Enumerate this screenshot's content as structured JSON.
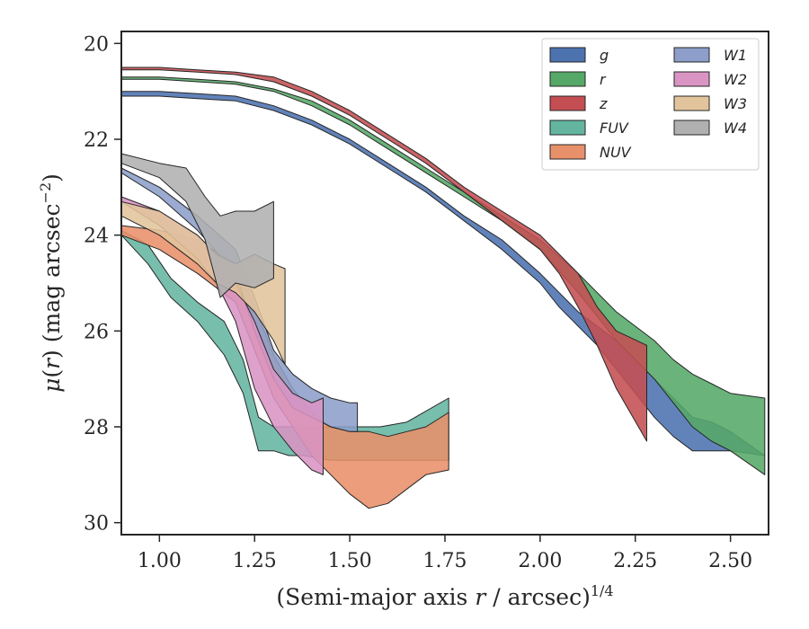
{
  "chart_data": {
    "type": "area",
    "xlabel": "(Semi-major axis r / arcsec)^{1/4}",
    "ylabel": "μ(r) (mag arcsec^{-2})",
    "xlim": [
      0.9,
      2.6
    ],
    "ylim": [
      30.25,
      19.75
    ],
    "y_inverted": true,
    "xticks": [
      "1.00",
      "1.25",
      "1.50",
      "1.75",
      "2.00",
      "2.25",
      "2.50"
    ],
    "yticks": [
      "20",
      "22",
      "24",
      "26",
      "28",
      "30"
    ],
    "grid": false,
    "legend_position": "top-right",
    "legend_columns": 2,
    "series": [
      {
        "name": "g",
        "color": "#4c72b0",
        "x": [
          0.9,
          1.0,
          1.1,
          1.2,
          1.3,
          1.4,
          1.5,
          1.6,
          1.7,
          1.8,
          1.9,
          2.0,
          2.05,
          2.1,
          2.15,
          2.2,
          2.25,
          2.3,
          2.35,
          2.4,
          2.45,
          2.5,
          2.59
        ],
        "lower": [
          21.0,
          21.0,
          21.05,
          21.1,
          21.3,
          21.6,
          22.0,
          22.5,
          23.0,
          23.6,
          24.1,
          24.8,
          25.2,
          25.6,
          25.9,
          26.2,
          26.6,
          27.0,
          27.4,
          27.8,
          27.9,
          28.1,
          28.6
        ],
        "upper": [
          21.1,
          21.1,
          21.15,
          21.2,
          21.4,
          21.7,
          22.1,
          22.6,
          23.1,
          23.7,
          24.3,
          25.0,
          25.5,
          25.9,
          26.3,
          26.8,
          27.3,
          27.8,
          28.2,
          28.5,
          28.5,
          28.5,
          28.6
        ]
      },
      {
        "name": "r",
        "color": "#55a868",
        "x": [
          0.9,
          1.0,
          1.1,
          1.2,
          1.3,
          1.4,
          1.5,
          1.6,
          1.7,
          1.8,
          1.9,
          2.0,
          2.1,
          2.2,
          2.3,
          2.35,
          2.4,
          2.45,
          2.5,
          2.59
        ],
        "lower": [
          20.7,
          20.7,
          20.75,
          20.8,
          20.95,
          21.2,
          21.6,
          22.1,
          22.6,
          23.1,
          23.6,
          24.1,
          24.8,
          25.6,
          26.2,
          26.6,
          26.9,
          27.1,
          27.3,
          27.4
        ],
        "upper": [
          20.75,
          20.75,
          20.8,
          20.85,
          21.0,
          21.3,
          21.7,
          22.2,
          22.7,
          23.2,
          23.7,
          24.3,
          25.2,
          26.2,
          27.0,
          27.5,
          28.0,
          28.3,
          28.5,
          29.0
        ]
      },
      {
        "name": "z",
        "color": "#c44e52",
        "x": [
          0.9,
          1.0,
          1.1,
          1.2,
          1.3,
          1.4,
          1.5,
          1.6,
          1.7,
          1.8,
          1.9,
          2.0,
          2.05,
          2.1,
          2.15,
          2.2,
          2.28
        ],
        "lower": [
          20.5,
          20.5,
          20.55,
          20.6,
          20.7,
          21.0,
          21.4,
          21.9,
          22.4,
          23.0,
          23.5,
          24.0,
          24.4,
          24.8,
          25.5,
          26.0,
          26.3
        ],
        "upper": [
          20.55,
          20.55,
          20.6,
          20.65,
          20.8,
          21.1,
          21.5,
          22.0,
          22.5,
          23.1,
          23.7,
          24.3,
          24.8,
          25.5,
          26.3,
          27.2,
          28.3
        ]
      },
      {
        "name": "FUV",
        "color": "#64b5a0",
        "x": [
          0.9,
          0.97,
          1.03,
          1.1,
          1.17,
          1.22,
          1.26,
          1.3,
          1.34,
          1.38,
          1.45,
          1.5,
          1.58,
          1.65,
          1.76
        ],
        "lower": [
          23.9,
          24.2,
          24.9,
          25.4,
          25.8,
          26.6,
          27.8,
          28.0,
          28.0,
          28.0,
          28.0,
          28.0,
          28.0,
          27.9,
          27.4
        ],
        "upper": [
          24.0,
          24.6,
          25.3,
          25.8,
          26.5,
          27.3,
          28.5,
          28.5,
          28.6,
          28.6,
          28.7,
          28.7,
          28.7,
          28.7,
          28.7
        ]
      },
      {
        "name": "NUV",
        "color": "#e8906a",
        "x": [
          0.9,
          1.0,
          1.1,
          1.2,
          1.25,
          1.3,
          1.35,
          1.4,
          1.45,
          1.5,
          1.55,
          1.6,
          1.65,
          1.7,
          1.76
        ],
        "lower": [
          23.8,
          23.9,
          24.1,
          24.6,
          25.5,
          26.5,
          27.2,
          27.7,
          28.0,
          28.1,
          28.1,
          28.2,
          28.1,
          28.0,
          27.7
        ],
        "upper": [
          24.0,
          24.3,
          24.8,
          25.4,
          26.4,
          27.4,
          28.0,
          28.6,
          29.0,
          29.4,
          29.7,
          29.6,
          29.3,
          29.0,
          28.9
        ]
      },
      {
        "name": "W1",
        "color": "#8c9ec9",
        "x": [
          0.9,
          1.0,
          1.1,
          1.2,
          1.25,
          1.3,
          1.35,
          1.4,
          1.45,
          1.5,
          1.52
        ],
        "lower": [
          22.6,
          23.0,
          23.6,
          24.3,
          25.3,
          26.4,
          26.9,
          27.2,
          27.4,
          27.5,
          27.5
        ],
        "upper": [
          22.7,
          23.2,
          23.9,
          24.8,
          26.0,
          27.0,
          27.6,
          27.8,
          28.0,
          28.1,
          28.1
        ]
      },
      {
        "name": "W2",
        "color": "#d994c4",
        "x": [
          0.9,
          1.0,
          1.1,
          1.15,
          1.2,
          1.25,
          1.3,
          1.35,
          1.4,
          1.43
        ],
        "lower": [
          23.2,
          23.5,
          24.0,
          24.4,
          25.0,
          25.8,
          26.8,
          27.3,
          27.5,
          27.4
        ],
        "upper": [
          23.3,
          23.8,
          24.5,
          25.0,
          25.8,
          27.2,
          28.0,
          28.5,
          28.9,
          29.0
        ]
      },
      {
        "name": "W3",
        "color": "#e2c49c",
        "x": [
          0.9,
          1.0,
          1.1,
          1.15,
          1.2,
          1.25,
          1.3,
          1.33
        ],
        "lower": [
          23.3,
          23.5,
          24.0,
          24.4,
          24.6,
          24.4,
          24.6,
          24.7
        ],
        "upper": [
          23.6,
          24.0,
          24.6,
          25.0,
          25.2,
          25.6,
          26.2,
          26.7
        ]
      },
      {
        "name": "W4",
        "color": "#b0b0b0",
        "x": [
          0.9,
          1.0,
          1.07,
          1.12,
          1.16,
          1.2,
          1.25,
          1.3
        ],
        "lower": [
          22.3,
          22.5,
          22.6,
          23.2,
          23.6,
          23.5,
          23.5,
          23.3
        ],
        "upper": [
          22.5,
          22.8,
          23.3,
          24.1,
          25.3,
          25.0,
          25.1,
          24.9
        ]
      }
    ]
  }
}
